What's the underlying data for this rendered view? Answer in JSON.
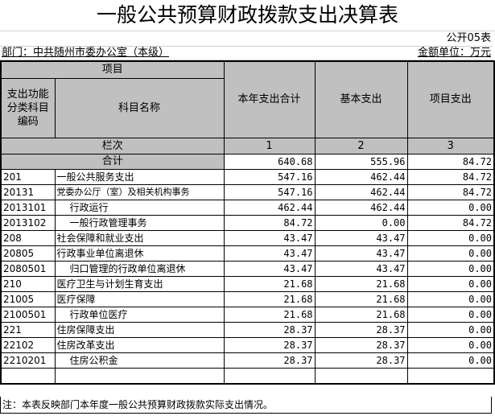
{
  "title": "一般公共预算财政拨款支出决算表",
  "table_no": "公开05表",
  "department": "部门：中共随州市委办公室（本级）",
  "unit": "金额单位：万元",
  "header": {
    "item": "项目",
    "code": "支出功能分类科目编码",
    "name": "科目名称",
    "total": "本年支出合计",
    "basic": "基本支出",
    "project": "项目支出",
    "column_no": "栏次",
    "c1": "1",
    "c2": "2",
    "c3": "3"
  },
  "total": {
    "label": "合计",
    "total": "640.68",
    "basic": "555.96",
    "project": "84.72"
  },
  "rows": [
    {
      "code": "201",
      "name": "一般公共服务支出",
      "indent": 0,
      "total": "547.16",
      "basic": "462.44",
      "project": "84.72"
    },
    {
      "code": "20131",
      "name": "党委办公厅（室）及相关机构事务",
      "indent": 0,
      "total": "547.16",
      "basic": "462.44",
      "project": "84.72"
    },
    {
      "code": "2013101",
      "name": "行政运行",
      "indent": 1,
      "total": "462.44",
      "basic": "462.44",
      "project": "0.00"
    },
    {
      "code": "2013102",
      "name": "一般行政管理事务",
      "indent": 1,
      "total": "84.72",
      "basic": "0.00",
      "project": "84.72"
    },
    {
      "code": "208",
      "name": "社会保障和就业支出",
      "indent": 0,
      "total": "43.47",
      "basic": "43.47",
      "project": "0.00"
    },
    {
      "code": "20805",
      "name": "行政事业单位离退休",
      "indent": 0,
      "total": "43.47",
      "basic": "43.47",
      "project": "0.00"
    },
    {
      "code": "2080501",
      "name": "归口管理的行政单位离退休",
      "indent": 1,
      "total": "43.47",
      "basic": "43.47",
      "project": "0.00"
    },
    {
      "code": "210",
      "name": "医疗卫生与计划生育支出",
      "indent": 0,
      "total": "21.68",
      "basic": "21.68",
      "project": "0.00"
    },
    {
      "code": "21005",
      "name": "医疗保障",
      "indent": 0,
      "total": "21.68",
      "basic": "21.68",
      "project": "0.00"
    },
    {
      "code": "2100501",
      "name": "行政单位医疗",
      "indent": 1,
      "total": "21.68",
      "basic": "21.68",
      "project": "0.00"
    },
    {
      "code": "221",
      "name": "住房保障支出",
      "indent": 0,
      "total": "28.37",
      "basic": "28.37",
      "project": "0.00"
    },
    {
      "code": "22102",
      "name": "住房改革支出",
      "indent": 0,
      "total": "28.37",
      "basic": "28.37",
      "project": "0.00"
    },
    {
      "code": "2210201",
      "name": "住房公积金",
      "indent": 1,
      "total": "28.37",
      "basic": "28.37",
      "project": "0.00"
    }
  ],
  "note": "注：本表反映部门本年度一般公共预算财政拨款实际支出情况。"
}
